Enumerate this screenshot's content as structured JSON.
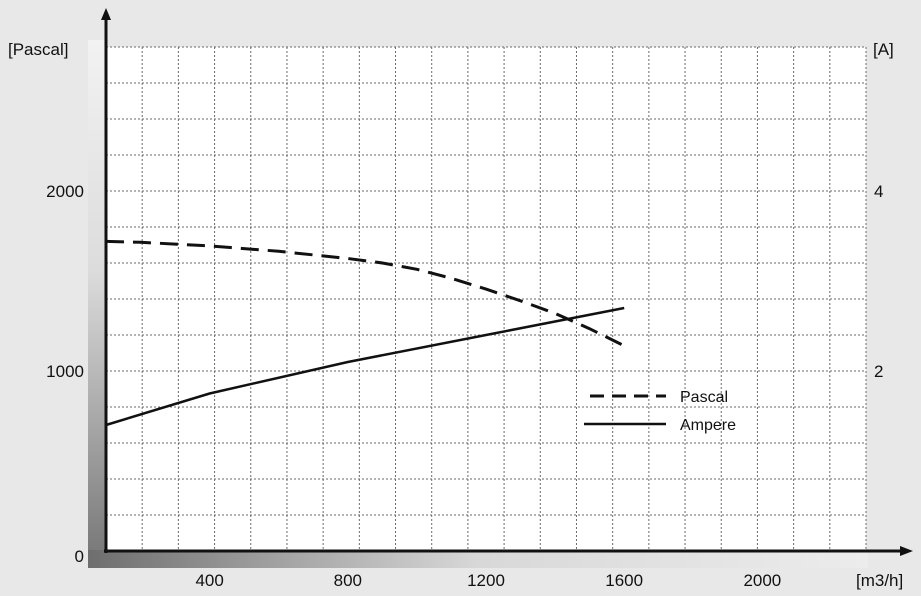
{
  "chart_data": {
    "type": "line",
    "title": "",
    "xlabel": "[m3/h]",
    "ylabel_left": "[Pascal]",
    "ylabel_right": "[A]",
    "xlim": [
      100,
      2300
    ],
    "ylim_left": [
      0,
      2800
    ],
    "ylim_right": [
      0,
      5.6
    ],
    "x_ticks": [
      {
        "value": 400,
        "label": "400"
      },
      {
        "value": 800,
        "label": "800"
      },
      {
        "value": 1200,
        "label": "1200"
      },
      {
        "value": 1600,
        "label": "1600"
      },
      {
        "value": 2000,
        "label": "2000"
      }
    ],
    "y_ticks_left": [
      {
        "value": 0,
        "label": "0"
      },
      {
        "value": 1000,
        "label": "1000"
      },
      {
        "value": 2000,
        "label": "2000"
      }
    ],
    "y_ticks_right": [
      {
        "value": 2,
        "label": "2"
      },
      {
        "value": 4,
        "label": "4"
      }
    ],
    "grid": true,
    "legend_position": "lower-right",
    "series": [
      {
        "name": "Pascal",
        "axis": "left",
        "style": "dashed",
        "color": "#111111",
        "x": [
          100,
          200,
          300,
          400,
          500,
          600,
          700,
          800,
          900,
          1000,
          1100,
          1200,
          1300,
          1400,
          1500,
          1600
        ],
        "y": [
          1720,
          1715,
          1705,
          1695,
          1680,
          1665,
          1645,
          1625,
          1600,
          1565,
          1515,
          1455,
          1390,
          1320,
          1235,
          1140
        ]
      },
      {
        "name": "Ampere",
        "axis": "right",
        "style": "solid",
        "color": "#111111",
        "x": [
          100,
          400,
          800,
          1200,
          1600
        ],
        "y": [
          1.4,
          1.75,
          2.1,
          2.4,
          2.7
        ]
      }
    ]
  }
}
